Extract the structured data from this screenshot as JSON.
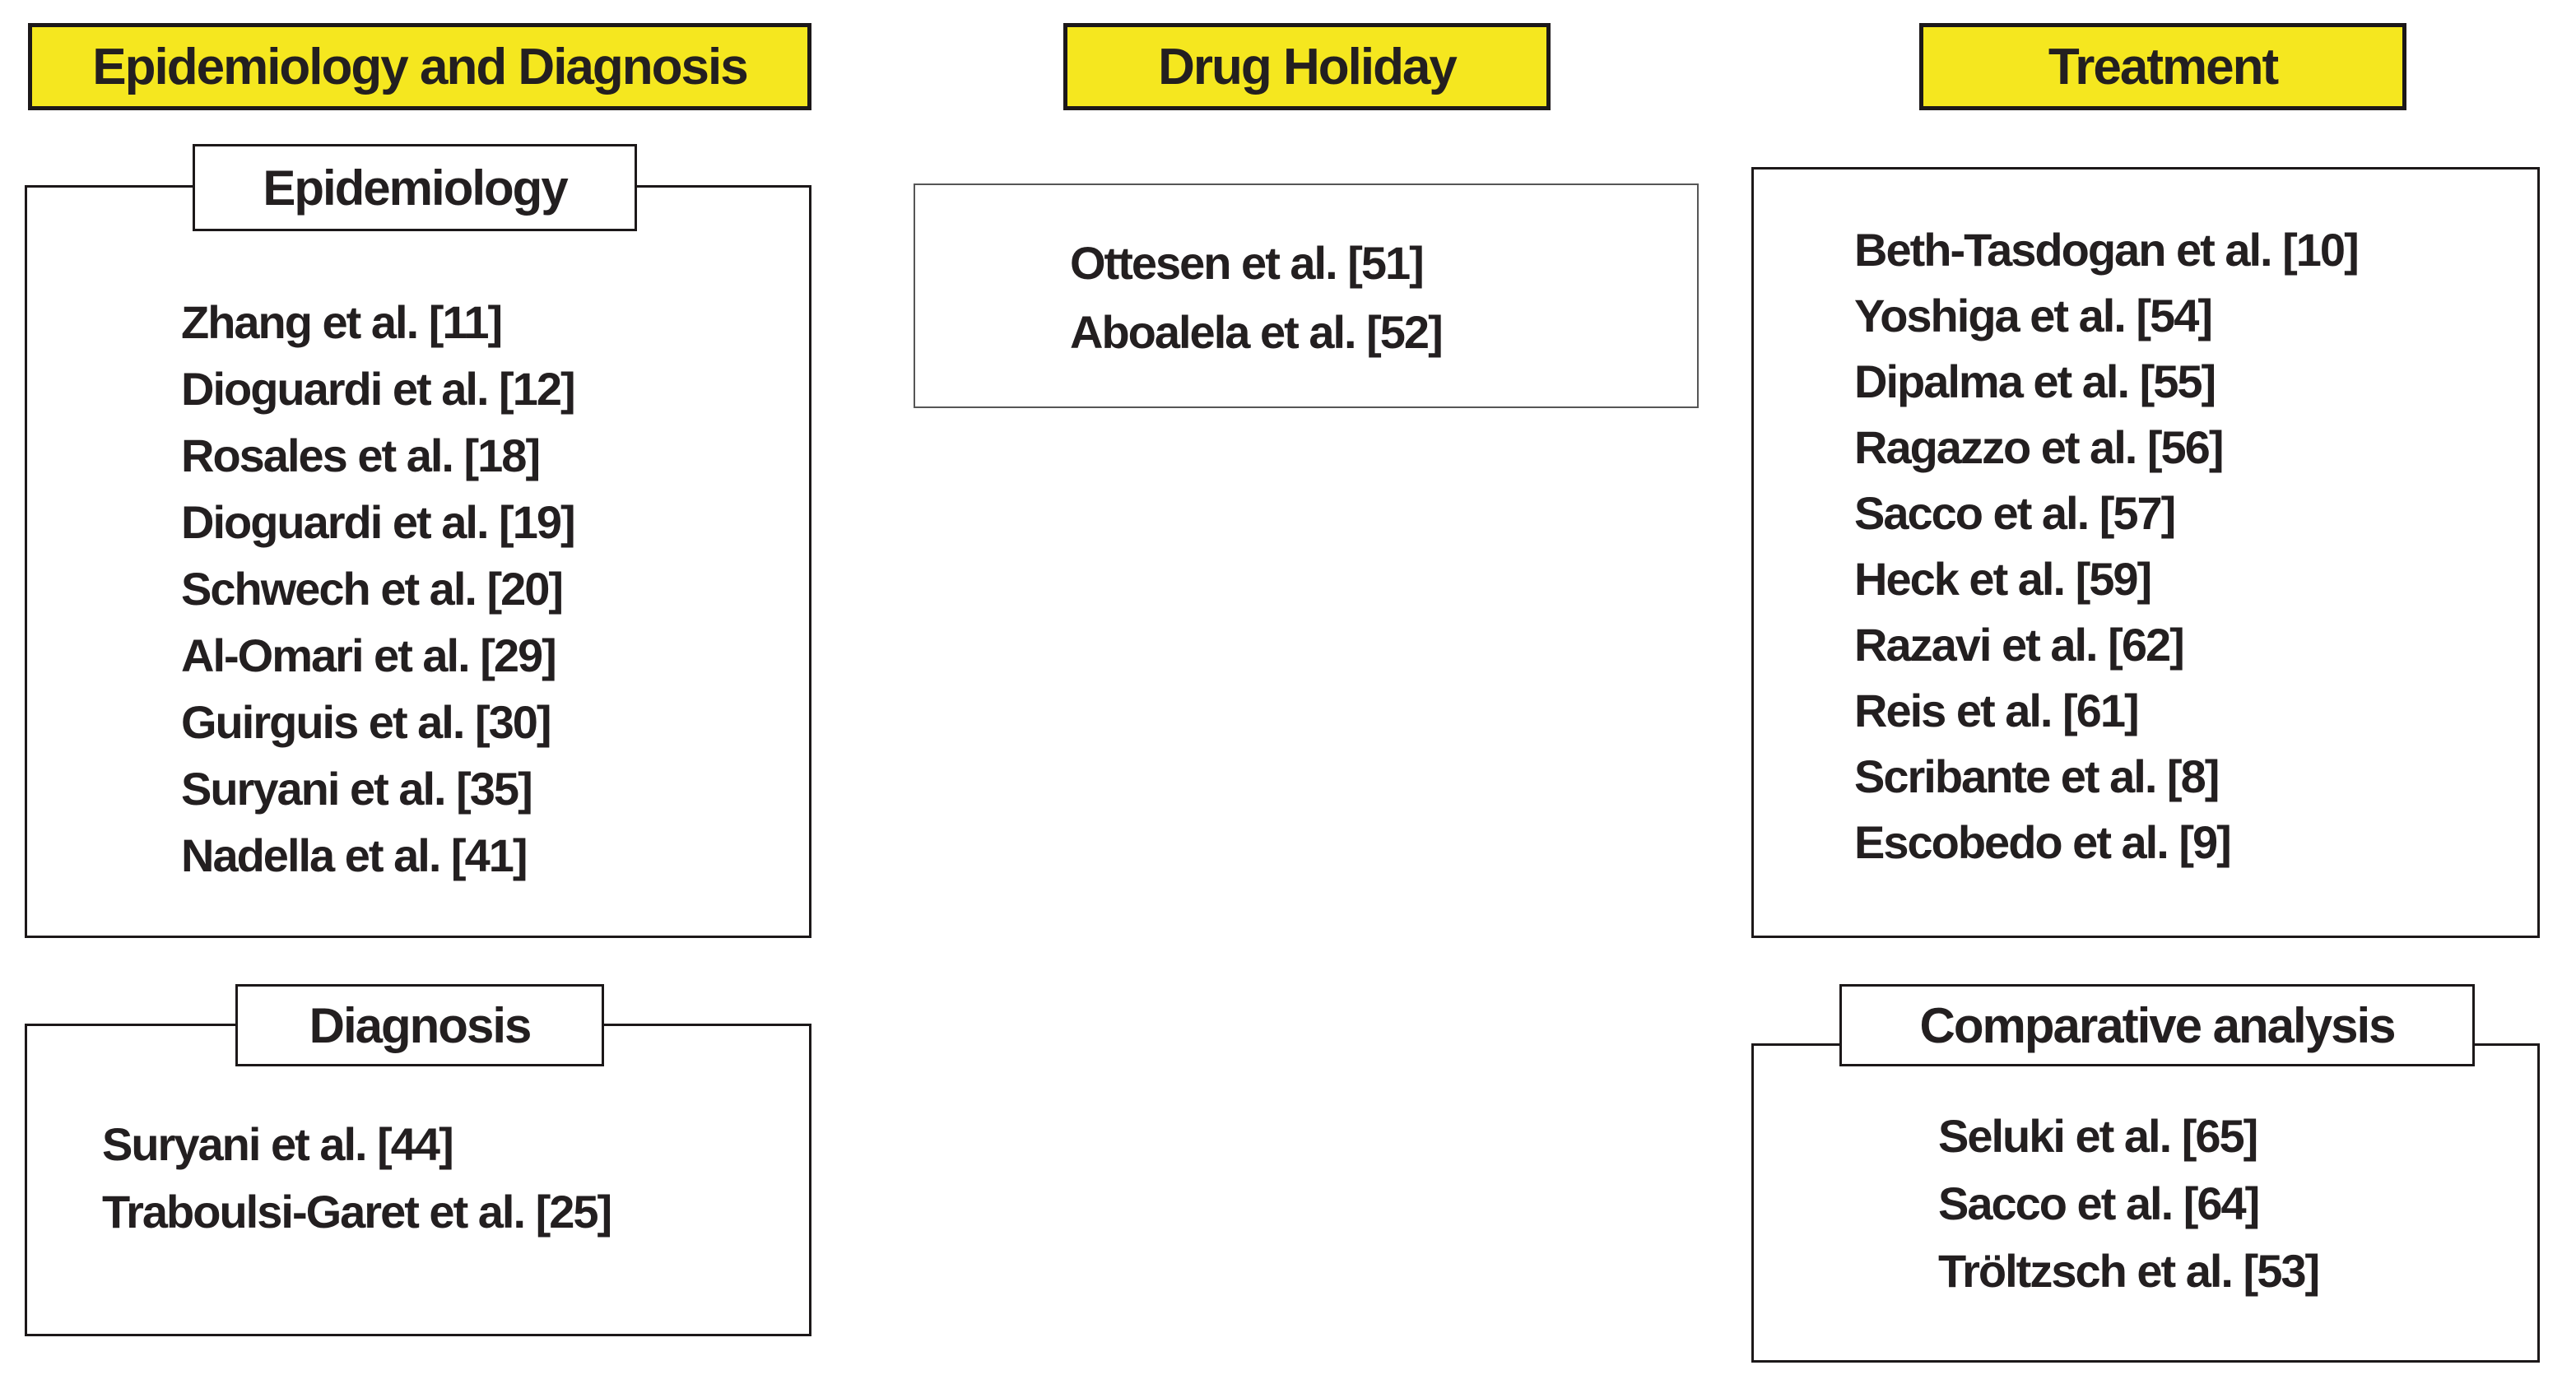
{
  "figure": {
    "colors": {
      "header_background": "#F5E71F",
      "border": "#1C1819",
      "text": "#231F20",
      "background": "#FFFFFF"
    },
    "columns": [
      {
        "header": "Epidemiology and Diagnosis",
        "sections": [
          {
            "label": "Epidemiology",
            "items": [
              "Zhang et al. [11]",
              "Dioguardi et al. [12]",
              "Rosales et al. [18]",
              "Dioguardi et al. [19]",
              "Schwech et al. [20]",
              "Al-Omari et al. [29]",
              "Guirguis et al. [30]",
              "Suryani et al. [35]",
              "Nadella et al. [41]"
            ]
          },
          {
            "label": "Diagnosis",
            "items": [
              "Suryani et al. [44]",
              "Traboulsi-Garet et al. [25]"
            ]
          }
        ]
      },
      {
        "header": "Drug Holiday",
        "sections": [
          {
            "items": [
              "Ottesen et al. [51]",
              "Aboalela et al. [52]"
            ]
          }
        ]
      },
      {
        "header": "Treatment",
        "sections": [
          {
            "items": [
              "Beth-Tasdogan et al. [10]",
              "Yoshiga et al. [54]",
              "Dipalma et al. [55]",
              "Ragazzo et al. [56]",
              "Sacco et al. [57]",
              "Heck et al. [59]",
              "Razavi et al. [62]",
              "Reis et al. [61]",
              "Scribante et al. [8]",
              "Escobedo et al. [9]"
            ]
          },
          {
            "label": "Comparative analysis",
            "items": [
              "Seluki et al. [65]",
              "Sacco et al. [64]",
              "Tröltzsch et al. [53]"
            ]
          }
        ]
      }
    ]
  }
}
